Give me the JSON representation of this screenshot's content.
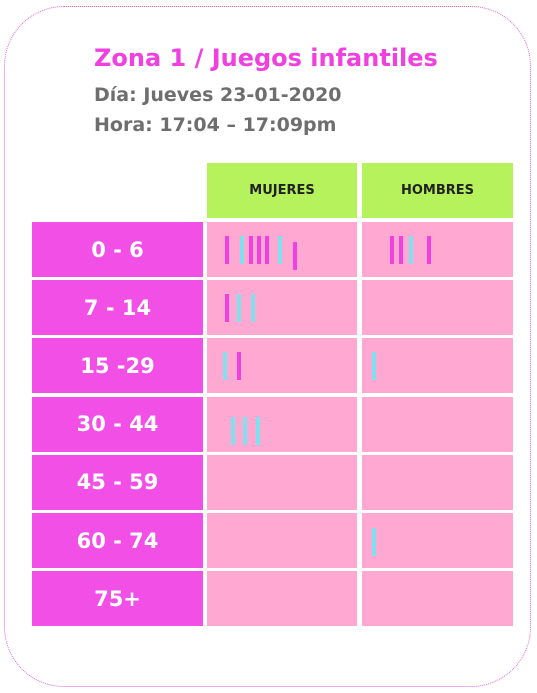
{
  "header": {
    "title": "Zona 1 / Juegos infantiles",
    "day": "Día: Jueves 23-01-2020",
    "time": "Hora: 17:04 – 17:09pm"
  },
  "table": {
    "headers": [
      "MUJERES",
      "HOMBRES"
    ],
    "rows": [
      "0 - 6",
      "7 - 14",
      "15 -29",
      "30 - 44",
      "45 - 59",
      "60 - 74",
      "75+"
    ]
  }
}
